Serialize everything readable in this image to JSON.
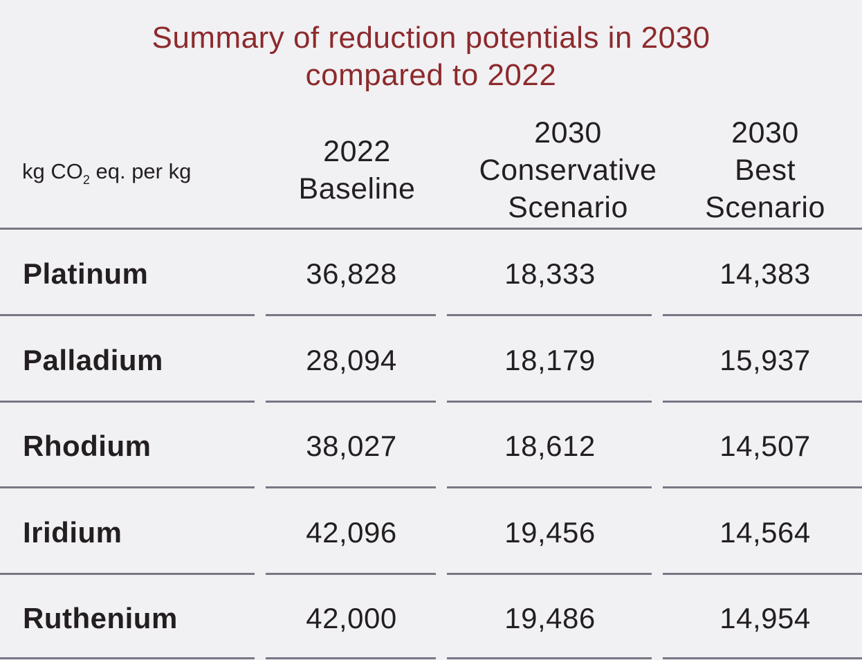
{
  "title_lines": [
    "Summary of reduction potentials in 2030",
    "compared to 2022"
  ],
  "unit_label": {
    "prefix": "kg CO",
    "subscript": "2",
    "suffix": " eq. per kg"
  },
  "columns": [
    {
      "lines": [
        "2022",
        "Baseline"
      ]
    },
    {
      "lines": [
        "2030",
        "Conservative",
        "Scenario"
      ]
    },
    {
      "lines": [
        "2030",
        "Best",
        "Scenario"
      ]
    }
  ],
  "rows": [
    {
      "name": "Platinum",
      "values": [
        "36,828",
        "18,333",
        "14,383"
      ]
    },
    {
      "name": "Palladium",
      "values": [
        "28,094",
        "18,179",
        "15,937"
      ]
    },
    {
      "name": "Rhodium",
      "values": [
        "38,027",
        "18,612",
        "14,507"
      ]
    },
    {
      "name": "Iridium",
      "values": [
        "42,096",
        "19,456",
        "14,564"
      ]
    },
    {
      "name": "Ruthenium",
      "values": [
        "42,000",
        "19,486",
        "14,954"
      ]
    }
  ],
  "chart_data": {
    "type": "table",
    "title": "Summary of reduction potentials in 2030 compared to 2022",
    "row_header": "kg CO2 eq. per kg",
    "categories": [
      "Platinum",
      "Palladium",
      "Rhodium",
      "Iridium",
      "Ruthenium"
    ],
    "series": [
      {
        "name": "2022 Baseline",
        "values": [
          36828,
          28094,
          38027,
          42096,
          42000
        ]
      },
      {
        "name": "2030 Conservative Scenario",
        "values": [
          18333,
          18179,
          18612,
          19456,
          19486
        ]
      },
      {
        "name": "2030 Best Scenario",
        "values": [
          14383,
          15937,
          14507,
          14564,
          14954
        ]
      }
    ]
  },
  "colors": {
    "background": "#f1f0f3",
    "title": "#8c2a2c",
    "text": "#231f20",
    "rule": "#777684"
  }
}
